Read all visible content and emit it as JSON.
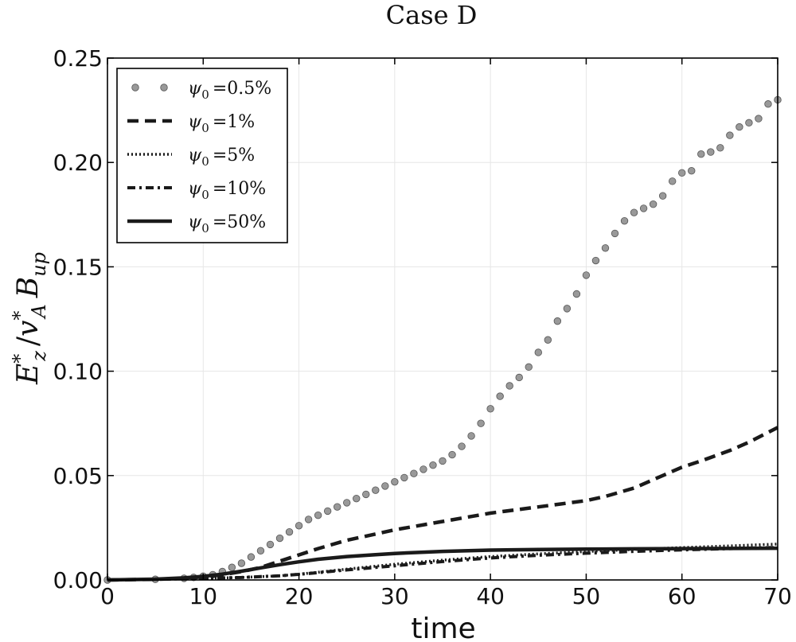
{
  "chart_data": {
    "type": "line",
    "title": "Case D",
    "xlabel": "time",
    "ylabel": "E*z / v*A Bup",
    "ylabel_parts": {
      "E": "E",
      "E_sup": "*",
      "E_sub": "z",
      "slash": "/",
      "v": "v",
      "v_sup": "*",
      "v_sub": "A",
      "B": "B",
      "B_sub": "up"
    },
    "xlim": [
      0,
      70
    ],
    "ylim": [
      0,
      0.25
    ],
    "xticks": [
      0,
      10,
      20,
      30,
      40,
      50,
      60,
      70
    ],
    "xtick_labels": [
      "0",
      "10",
      "20",
      "30",
      "40",
      "50",
      "60",
      "70"
    ],
    "yticks": [
      0,
      0.05,
      0.1,
      0.15,
      0.2,
      0.25
    ],
    "ytick_labels": [
      "0.00",
      "0.05",
      "0.10",
      "0.15",
      "0.20",
      "0.25"
    ],
    "grid": true,
    "legend_position": "top-left",
    "series": [
      {
        "name": "ψ0 =0.5%",
        "legend_label": {
          "psi": "ψ",
          "sub": "0",
          "value": "=0.5%"
        },
        "style": "markers",
        "color": "#999999",
        "x": [
          0,
          5,
          8,
          9,
          10,
          11,
          12,
          13,
          14,
          15,
          16,
          17,
          18,
          19,
          20,
          21,
          22,
          23,
          24,
          25,
          26,
          27,
          28,
          29,
          30,
          31,
          32,
          33,
          34,
          35,
          36,
          37,
          38,
          39,
          40,
          41,
          42,
          43,
          44,
          45,
          46,
          47,
          48,
          49,
          50,
          51,
          52,
          53,
          54,
          55,
          56,
          57,
          58,
          59,
          60,
          61,
          62,
          63,
          64,
          65,
          66,
          67,
          68,
          69,
          70
        ],
        "y": [
          0.0,
          0.0003,
          0.0008,
          0.0012,
          0.0018,
          0.0025,
          0.004,
          0.006,
          0.008,
          0.011,
          0.014,
          0.017,
          0.02,
          0.023,
          0.026,
          0.029,
          0.031,
          0.033,
          0.035,
          0.037,
          0.039,
          0.041,
          0.043,
          0.045,
          0.047,
          0.049,
          0.051,
          0.053,
          0.055,
          0.057,
          0.06,
          0.064,
          0.069,
          0.075,
          0.082,
          0.088,
          0.093,
          0.097,
          0.102,
          0.109,
          0.115,
          0.124,
          0.13,
          0.137,
          0.146,
          0.153,
          0.159,
          0.166,
          0.172,
          0.176,
          0.178,
          0.18,
          0.184,
          0.191,
          0.195,
          0.196,
          0.204,
          0.205,
          0.207,
          0.213,
          0.217,
          0.219,
          0.221,
          0.228,
          0.23
        ]
      },
      {
        "name": "ψ0 =1%",
        "legend_label": {
          "psi": "ψ",
          "sub": "0",
          "value": "=1%"
        },
        "style": "dashed",
        "color": "#1a1a1a",
        "x": [
          0,
          5,
          8,
          10,
          12,
          14,
          16,
          18,
          20,
          22,
          25,
          28,
          30,
          35,
          40,
          45,
          50,
          52,
          55,
          57,
          60,
          62,
          65,
          67,
          70
        ],
        "y": [
          0.0,
          0.0003,
          0.0008,
          0.0015,
          0.0025,
          0.004,
          0.006,
          0.009,
          0.012,
          0.015,
          0.019,
          0.022,
          0.024,
          0.028,
          0.032,
          0.035,
          0.038,
          0.04,
          0.044,
          0.048,
          0.054,
          0.057,
          0.062,
          0.066,
          0.073
        ]
      },
      {
        "name": "ψ0 =5%",
        "legend_label": {
          "psi": "ψ",
          "sub": "0",
          "value": "=5%"
        },
        "style": "dotted",
        "color": "#1a1a1a",
        "x": [
          0,
          5,
          10,
          12,
          14,
          16,
          18,
          20,
          22,
          25,
          28,
          30,
          35,
          40,
          45,
          50,
          55,
          60,
          65,
          70
        ],
        "y": [
          0.0,
          0.0003,
          0.0008,
          0.001,
          0.0012,
          0.0016,
          0.002,
          0.0028,
          0.0037,
          0.0052,
          0.0066,
          0.0075,
          0.0095,
          0.0112,
          0.0125,
          0.0136,
          0.0146,
          0.0155,
          0.0163,
          0.0172
        ]
      },
      {
        "name": "ψ0 =10%",
        "legend_label": {
          "psi": "ψ",
          "sub": "0",
          "value": "=10%"
        },
        "style": "dashdot",
        "color": "#1a1a1a",
        "x": [
          0,
          5,
          10,
          12,
          14,
          16,
          18,
          20,
          22,
          25,
          28,
          30,
          35,
          40,
          45,
          50,
          55,
          60,
          65,
          70
        ],
        "y": [
          0.0,
          0.0003,
          0.0008,
          0.001,
          0.0012,
          0.0016,
          0.002,
          0.0027,
          0.0035,
          0.0048,
          0.006,
          0.0068,
          0.0088,
          0.0105,
          0.0118,
          0.0128,
          0.0137,
          0.0144,
          0.015,
          0.0156
        ]
      },
      {
        "name": "ψ0 =50%",
        "legend_label": {
          "psi": "ψ",
          "sub": "0",
          "value": "=50%"
        },
        "style": "solid",
        "color": "#1a1a1a",
        "x": [
          0,
          5,
          8,
          10,
          12,
          14,
          16,
          18,
          20,
          22,
          25,
          28,
          30,
          35,
          40,
          45,
          50,
          55,
          60,
          65,
          70
        ],
        "y": [
          0.0,
          0.0004,
          0.001,
          0.0017,
          0.0028,
          0.0042,
          0.0058,
          0.0073,
          0.0087,
          0.0099,
          0.0112,
          0.0121,
          0.0127,
          0.0137,
          0.0143,
          0.0146,
          0.0148,
          0.0149,
          0.015,
          0.0151,
          0.0152
        ]
      }
    ]
  }
}
